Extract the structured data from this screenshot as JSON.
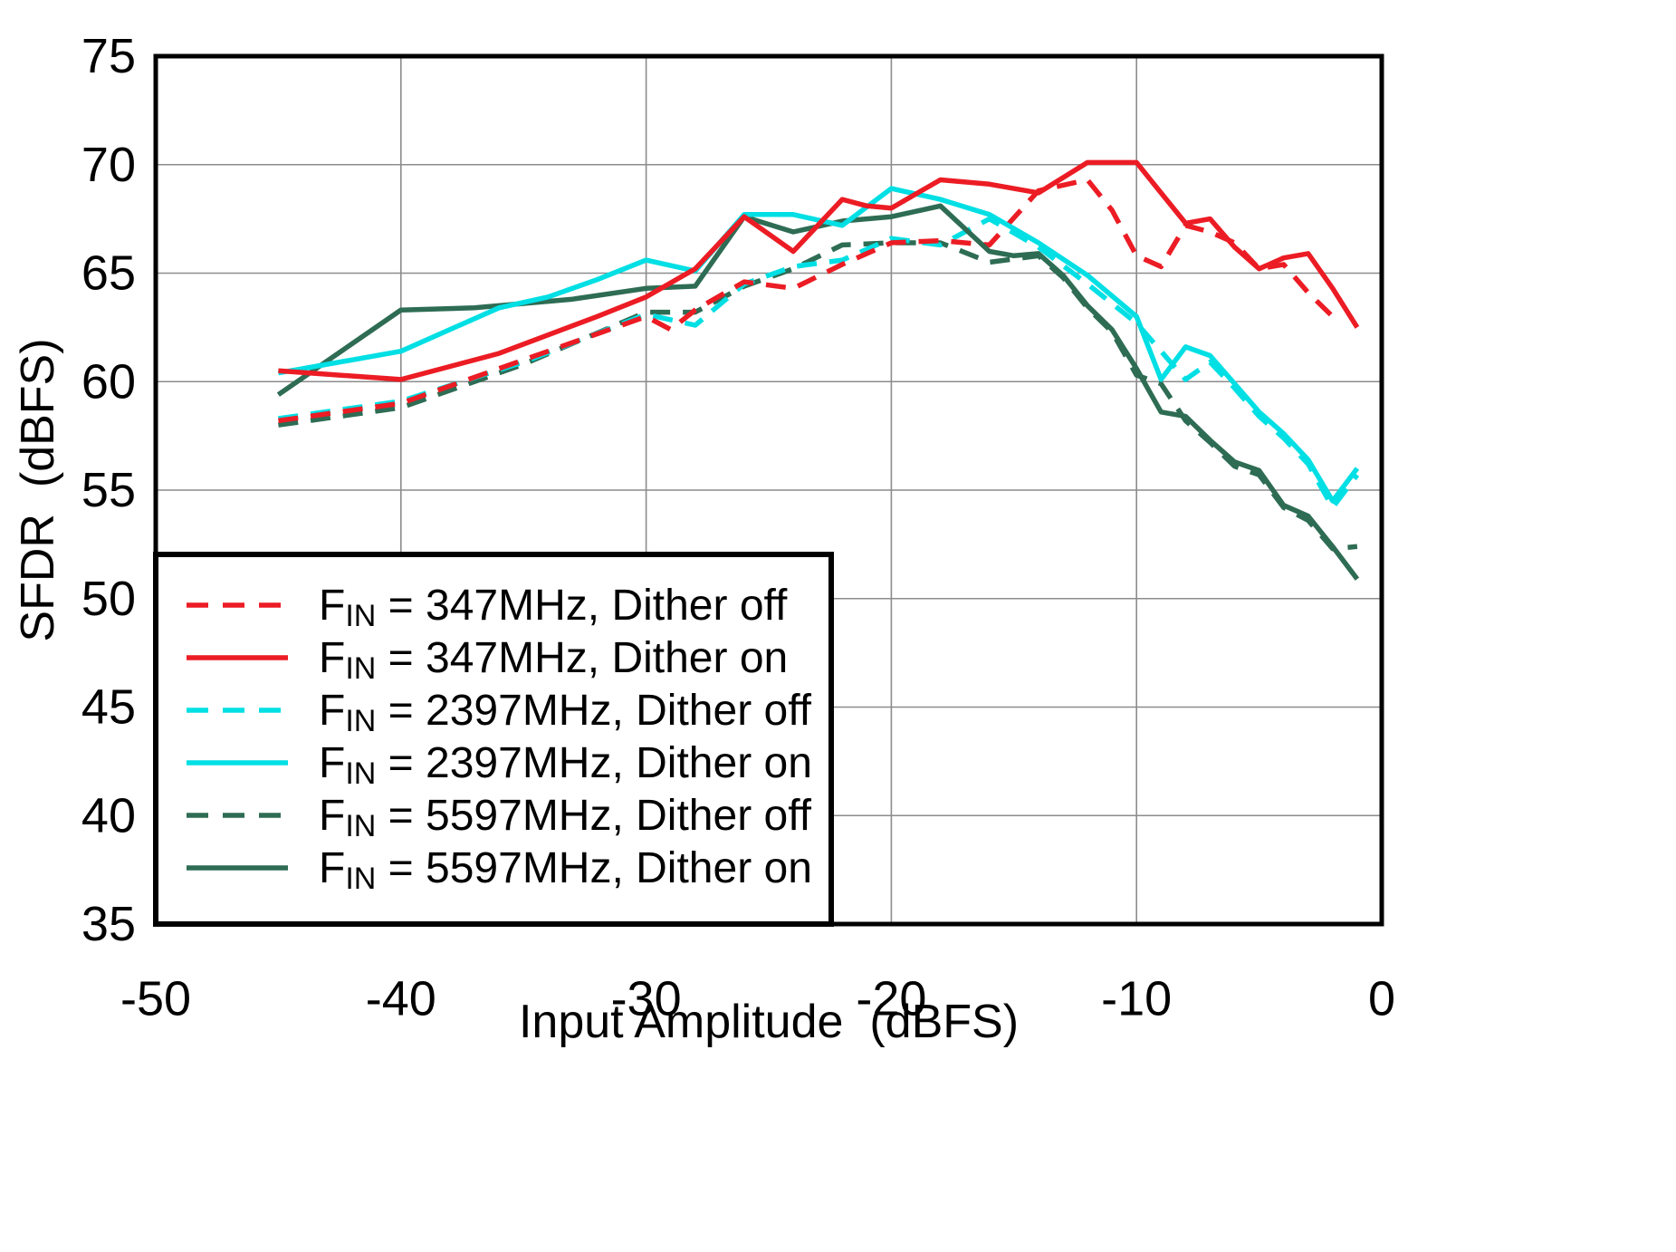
{
  "chart_data": {
    "type": "line",
    "title": "",
    "xlabel": "Input Amplitude  (dBFS)",
    "ylabel": "SFDR  (dBFS)",
    "xlim": [
      -50,
      0
    ],
    "ylim": [
      35,
      75
    ],
    "x_ticks": [
      -50,
      -40,
      -30,
      -20,
      -10,
      0
    ],
    "y_ticks": [
      35,
      40,
      45,
      50,
      55,
      60,
      65,
      70,
      75
    ],
    "grid": true,
    "legend_position": "lower left",
    "colors": {
      "red": "#ec1c24",
      "cyan": "#00dfe4",
      "green": "#2e6c54",
      "frame": "#000000",
      "gridline": "#8c8c8c"
    },
    "series": [
      {
        "id": "fin-347mhz-dither-off",
        "name": "FIN = 347MHz,  Dither off",
        "label_f": "F",
        "label_sub": "IN",
        "label_rest": " = 347MHz,  Dither off",
        "color_key": "red",
        "dashed": true,
        "x": [
          -45,
          -40,
          -35,
          -30,
          -29,
          -28,
          -26,
          -24,
          -22,
          -20,
          -18,
          -16,
          -14,
          -12,
          -11,
          -10,
          -9,
          -8,
          -7,
          -6,
          -5,
          -4,
          -3,
          -2
        ],
        "y": [
          58.2,
          59.0,
          61.0,
          63.0,
          62.4,
          63.3,
          64.6,
          64.3,
          65.4,
          66.4,
          66.5,
          66.3,
          68.8,
          69.3,
          67.9,
          65.8,
          65.3,
          67.2,
          66.9,
          66.4,
          65.2,
          65.4,
          64.1,
          63.0
        ]
      },
      {
        "id": "fin-347mhz-dither-on",
        "name": "FIN = 347MHz,  Dither on",
        "label_f": "F",
        "label_sub": "IN",
        "label_rest": " = 347MHz,  Dither on",
        "color_key": "red",
        "dashed": false,
        "x": [
          -45,
          -40,
          -36,
          -32,
          -30,
          -28,
          -26,
          -24,
          -22,
          -21,
          -20,
          -18,
          -16,
          -14,
          -12,
          -10,
          -8,
          -7,
          -6,
          -5,
          -4,
          -3,
          -2,
          -1
        ],
        "y": [
          60.5,
          60.1,
          61.3,
          63.0,
          63.9,
          65.2,
          67.6,
          66.0,
          68.4,
          68.1,
          68.0,
          69.3,
          69.1,
          68.7,
          70.1,
          70.1,
          67.3,
          67.5,
          66.2,
          65.2,
          65.7,
          65.9,
          64.3,
          62.5
        ]
      },
      {
        "id": "fin-2397mhz-dither-off",
        "name": "FIN = 2397MHz,  Dither off",
        "label_f": "F",
        "label_sub": "IN",
        "label_rest": " = 2397MHz,  Dither off",
        "color_key": "cyan",
        "dashed": true,
        "x": [
          -45,
          -40,
          -35,
          -30,
          -28,
          -26,
          -24,
          -22,
          -20,
          -18,
          -16,
          -14,
          -12,
          -10,
          -9,
          -8,
          -7,
          -6,
          -5,
          -4,
          -3,
          -2,
          -1
        ],
        "y": [
          58.3,
          59.1,
          60.9,
          63.1,
          62.6,
          64.5,
          65.3,
          65.6,
          66.6,
          66.3,
          67.5,
          66.2,
          64.5,
          62.7,
          61.4,
          60.1,
          60.9,
          59.7,
          58.4,
          57.4,
          56.2,
          54.2,
          55.7
        ]
      },
      {
        "id": "fin-2397mhz-dither-on",
        "name": "FIN = 2397MHz,  Dither on",
        "label_f": "F",
        "label_sub": "IN",
        "label_rest": " = 2397MHz,  Dither on",
        "color_key": "cyan",
        "dashed": false,
        "x": [
          -45,
          -40,
          -36,
          -34,
          -32,
          -30,
          -28,
          -26,
          -24,
          -22,
          -20,
          -18,
          -16,
          -14,
          -12,
          -10,
          -9,
          -8,
          -7,
          -6,
          -5,
          -4,
          -3,
          -2,
          -1
        ],
        "y": [
          60.4,
          61.4,
          63.4,
          63.9,
          64.7,
          65.6,
          65.1,
          67.7,
          67.7,
          67.2,
          68.9,
          68.4,
          67.7,
          66.4,
          64.9,
          63.0,
          60.1,
          61.6,
          61.2,
          59.9,
          58.6,
          57.6,
          56.4,
          54.5,
          56.0
        ]
      },
      {
        "id": "fin-5597mhz-dither-off",
        "name": "FIN = 5597MHz,  Dither off",
        "label_f": "F",
        "label_sub": "IN",
        "label_rest": " = 5597MHz,  Dither off",
        "color_key": "green",
        "dashed": true,
        "x": [
          -45,
          -40,
          -35,
          -30,
          -28,
          -26,
          -24,
          -22,
          -20,
          -18,
          -16,
          -14,
          -13,
          -12,
          -11,
          -10,
          -9,
          -8,
          -7,
          -6,
          -5,
          -4,
          -3,
          -2,
          -1
        ],
        "y": [
          58.0,
          58.8,
          60.8,
          63.2,
          63.2,
          64.4,
          65.2,
          66.3,
          66.4,
          66.4,
          65.5,
          65.8,
          64.8,
          63.4,
          62.3,
          60.3,
          59.9,
          58.2,
          57.2,
          56.1,
          55.7,
          54.2,
          53.6,
          52.3,
          52.4
        ]
      },
      {
        "id": "fin-5597mhz-dither-on",
        "name": "FIN = 5597MHz,  Dither on",
        "label_f": "F",
        "label_sub": "IN",
        "label_rest": " = 5597MHz,  Dither on",
        "color_key": "green",
        "dashed": false,
        "x": [
          -45,
          -40,
          -37,
          -33,
          -30,
          -28,
          -26,
          -24,
          -22,
          -20,
          -18,
          -16,
          -15,
          -14,
          -13,
          -12,
          -11,
          -10,
          -9,
          -8,
          -7,
          -6,
          -5,
          -4,
          -3,
          -2,
          -1
        ],
        "y": [
          59.4,
          63.3,
          63.4,
          63.8,
          64.3,
          64.4,
          67.6,
          66.9,
          67.4,
          67.6,
          68.1,
          66.0,
          65.8,
          65.9,
          64.9,
          63.5,
          62.4,
          60.6,
          58.6,
          58.4,
          57.3,
          56.3,
          55.9,
          54.3,
          53.8,
          52.4,
          50.9
        ]
      }
    ]
  }
}
